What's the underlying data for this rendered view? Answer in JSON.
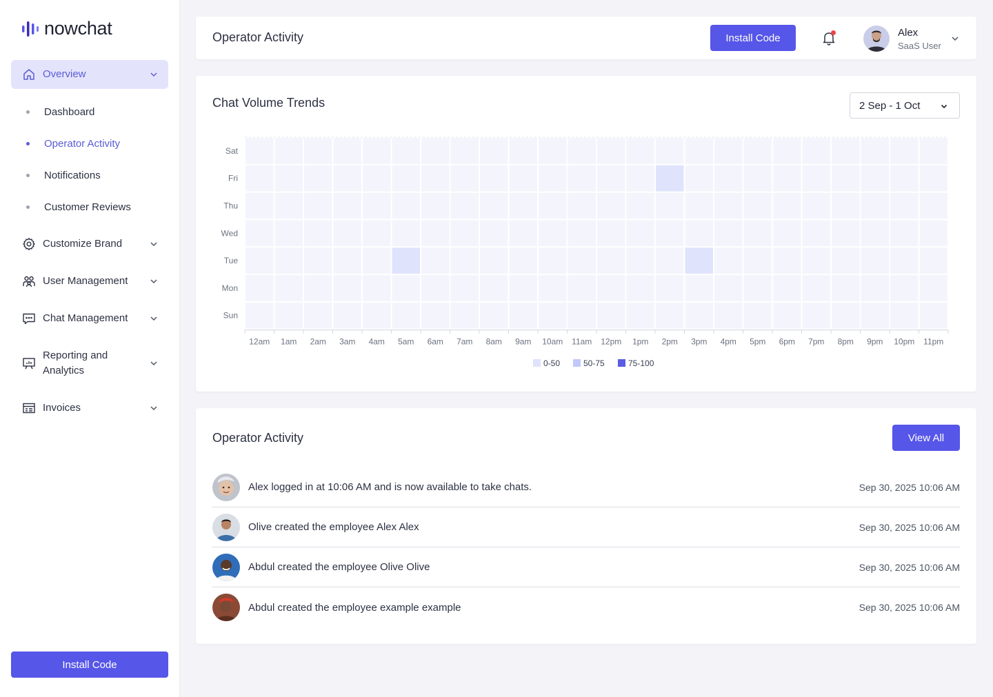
{
  "brand": {
    "name": "nowchat"
  },
  "sidebar": {
    "overview": {
      "label": "Overview",
      "icon": "home-icon"
    },
    "sub_items": [
      {
        "label": "Dashboard"
      },
      {
        "label": "Operator Activity",
        "active": true
      },
      {
        "label": "Notifications"
      },
      {
        "label": "Customer Reviews"
      }
    ],
    "groups": [
      {
        "label": "Customize Brand",
        "icon": "gear-icon"
      },
      {
        "label": "User Management",
        "icon": "users-icon"
      },
      {
        "label": "Chat Management",
        "icon": "chat-icon"
      },
      {
        "label": "Reporting and Analytics",
        "icon": "analytics-icon"
      },
      {
        "label": "Invoices",
        "icon": "invoice-icon"
      }
    ],
    "install_label": "Install Code"
  },
  "header": {
    "title": "Operator Activity",
    "install_label": "Install Code",
    "user": {
      "name": "Alex",
      "role": "SaaS User"
    }
  },
  "chart_section": {
    "title": "Chat Volume Trends",
    "date_range": "2 Sep - 1 Oct"
  },
  "chart_data": {
    "type": "heatmap",
    "title": "Chat Volume Trends",
    "x_categories": [
      "12am",
      "1am",
      "2am",
      "3am",
      "4am",
      "5am",
      "6am",
      "7am",
      "8am",
      "9am",
      "10am",
      "11am",
      "12pm",
      "1pm",
      "2pm",
      "3pm",
      "4pm",
      "5pm",
      "6pm",
      "7pm",
      "8pm",
      "9pm",
      "10pm",
      "11pm"
    ],
    "y_categories": [
      "Sat",
      "Fri",
      "Thu",
      "Wed",
      "Tue",
      "Mon",
      "Sun"
    ],
    "cells": [
      {
        "day": "Fri",
        "hour": "2pm",
        "range": "0-50"
      },
      {
        "day": "Tue",
        "hour": "5am",
        "range": "0-50"
      },
      {
        "day": "Tue",
        "hour": "3pm",
        "range": "0-50"
      }
    ],
    "legend": [
      {
        "label": "0-50",
        "color": "#dfe3fb"
      },
      {
        "label": "50-75",
        "color": "#bfc9fa"
      },
      {
        "label": "75-100",
        "color": "#5b5be6"
      }
    ],
    "empty_color": "#f4f5fc"
  },
  "activity": {
    "title": "Operator Activity",
    "view_all_label": "View All",
    "rows": [
      {
        "text": "Alex logged in at 10:06 AM and is now available to take chats.",
        "time": "Sep 30, 2025 10:06 AM"
      },
      {
        "text": "Olive created the employee Alex Alex",
        "time": "Sep 30, 2025 10:06 AM"
      },
      {
        "text": "Abdul created the employee Olive Olive",
        "time": "Sep 30, 2025 10:06 AM"
      },
      {
        "text": "Abdul created the employee example example",
        "time": "Sep 30, 2025 10:06 AM"
      }
    ]
  },
  "colors": {
    "accent": "#5656e8",
    "active_bg": "#e3e4fb",
    "active_text": "#5b5bd6"
  }
}
